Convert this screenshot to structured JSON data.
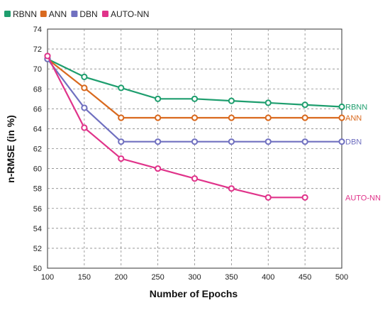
{
  "chart_data": {
    "type": "line",
    "title": "",
    "xlabel": "Number of Epochs",
    "ylabel": "n-RMSE (in %)",
    "x": [
      100,
      150,
      200,
      250,
      300,
      350,
      400,
      450,
      500
    ],
    "xlim": [
      100,
      500
    ],
    "ylim": [
      50,
      74
    ],
    "xticks": [
      "100",
      "150",
      "200",
      "250",
      "300",
      "350",
      "400",
      "450",
      "500"
    ],
    "yticks": [
      "50",
      "52",
      "54",
      "56",
      "58",
      "60",
      "62",
      "64",
      "66",
      "68",
      "70",
      "72",
      "74"
    ],
    "grid": true,
    "legend_position": "top-left",
    "series": [
      {
        "name": "RBNN",
        "color": "#1e9e6e",
        "end_label": "RBNN",
        "x": [
          100,
          150,
          200,
          250,
          300,
          350,
          400,
          450,
          500
        ],
        "values": [
          71.0,
          69.2,
          68.1,
          67.0,
          67.0,
          66.8,
          66.6,
          66.4,
          66.2
        ]
      },
      {
        "name": "ANN",
        "color": "#d9691e",
        "end_label": "ANN",
        "x": [
          100,
          150,
          200,
          250,
          300,
          350,
          400,
          450,
          500
        ],
        "values": [
          71.0,
          68.1,
          65.1,
          65.1,
          65.1,
          65.1,
          65.1,
          65.1,
          65.1
        ]
      },
      {
        "name": "DBN",
        "color": "#7070c0",
        "end_label": "DBN",
        "x": [
          100,
          150,
          200,
          250,
          300,
          350,
          400,
          450,
          500
        ],
        "values": [
          71.0,
          66.1,
          62.7,
          62.7,
          62.7,
          62.7,
          62.7,
          62.7,
          62.7
        ]
      },
      {
        "name": "AUTO-NN",
        "color": "#e0338a",
        "end_label": "AUTO-NN",
        "x": [
          100,
          150,
          200,
          250,
          300,
          350,
          400,
          450
        ],
        "values": [
          71.3,
          64.1,
          61.0,
          60.0,
          59.0,
          58.0,
          57.1,
          57.1
        ]
      }
    ]
  }
}
